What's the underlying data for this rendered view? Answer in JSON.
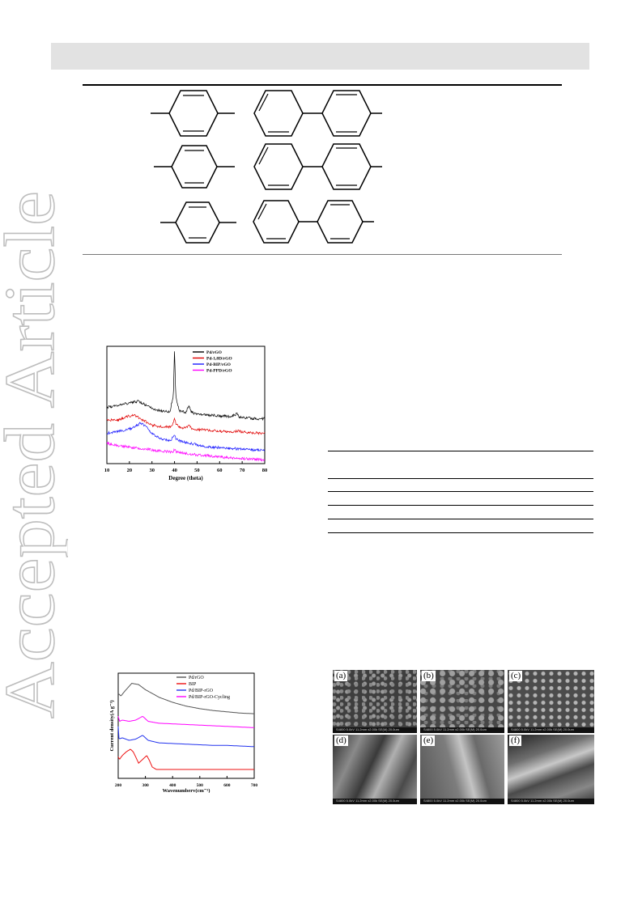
{
  "watermark": "Accepted Article",
  "xrd_chart": {
    "legend": [
      "Pd/rGO",
      "Pd-1,8D/rGO",
      "Pd-BIP/rGO",
      "Pd-PPD/rGO"
    ],
    "xlabel": "Degree (theta)",
    "xticks": [
      "10",
      "20",
      "30",
      "40",
      "50",
      "60",
      "70",
      "80"
    ]
  },
  "cv_chart": {
    "legend": [
      "Pd/rGO",
      "BIP",
      "Pd/BIP-rGO",
      "Pd/BIP-rGO-Cycling"
    ],
    "xlabel": "Wavenumberv(cm⁻¹)",
    "ylabel": "Current density(A g⁻¹)",
    "xticks": [
      "200",
      "300",
      "400",
      "500",
      "600",
      "700"
    ]
  },
  "sem": {
    "panels": [
      "(a)",
      "(b)",
      "(c)",
      "(d)",
      "(e)",
      "(f)"
    ],
    "footer": "S4800 5.0kV 11.2mm x2.00k SE(M) 20.0um"
  },
  "chart_data": [
    {
      "type": "line",
      "xlabel": "Degree (theta)",
      "ylabel": "",
      "xlim": [
        10,
        80
      ],
      "grid": false,
      "legend_position": "top-right",
      "series": [
        {
          "name": "Pd/rGO",
          "color": "#000000",
          "points": [
            [
              10,
              0.78
            ],
            [
              15,
              0.8
            ],
            [
              20,
              0.84
            ],
            [
              24,
              0.86
            ],
            [
              28,
              0.8
            ],
            [
              32,
              0.74
            ],
            [
              36,
              0.72
            ],
            [
              38,
              0.72
            ],
            [
              39.5,
              0.95
            ],
            [
              40,
              1.6
            ],
            [
              40.5,
              0.95
            ],
            [
              42,
              0.73
            ],
            [
              45,
              0.71
            ],
            [
              46.5,
              0.8
            ],
            [
              47.5,
              0.71
            ],
            [
              50,
              0.68
            ],
            [
              55,
              0.67
            ],
            [
              60,
              0.66
            ],
            [
              65,
              0.65
            ],
            [
              67.8,
              0.69
            ],
            [
              68.5,
              0.65
            ],
            [
              72,
              0.63
            ],
            [
              76,
              0.62
            ],
            [
              80,
              0.62
            ]
          ]
        },
        {
          "name": "Pd-1,8D/rGO",
          "color": "#e00000",
          "points": [
            [
              10,
              0.6
            ],
            [
              15,
              0.6
            ],
            [
              19,
              0.65
            ],
            [
              22,
              0.67
            ],
            [
              26,
              0.6
            ],
            [
              30,
              0.53
            ],
            [
              34,
              0.51
            ],
            [
              38,
              0.51
            ],
            [
              39.5,
              0.56
            ],
            [
              40,
              0.64
            ],
            [
              40.5,
              0.56
            ],
            [
              42,
              0.5
            ],
            [
              45,
              0.49
            ],
            [
              46.5,
              0.52
            ],
            [
              48,
              0.48
            ],
            [
              55,
              0.46
            ],
            [
              60,
              0.45
            ],
            [
              65,
              0.44
            ],
            [
              68,
              0.45
            ],
            [
              72,
              0.43
            ],
            [
              80,
              0.42
            ]
          ]
        },
        {
          "name": "Pd-BIP/rGO",
          "color": "#1a1aff",
          "points": [
            [
              10,
              0.42
            ],
            [
              14,
              0.44
            ],
            [
              18,
              0.46
            ],
            [
              22,
              0.5
            ],
            [
              25,
              0.56
            ],
            [
              27,
              0.52
            ],
            [
              30,
              0.42
            ],
            [
              34,
              0.34
            ],
            [
              38,
              0.32
            ],
            [
              40,
              0.38
            ],
            [
              41,
              0.33
            ],
            [
              44,
              0.3
            ],
            [
              50,
              0.26
            ],
            [
              55,
              0.23
            ],
            [
              60,
              0.22
            ],
            [
              65,
              0.21
            ],
            [
              70,
              0.2
            ],
            [
              75,
              0.19
            ],
            [
              80,
              0.19
            ]
          ]
        },
        {
          "name": "Pd-PPD/rGO",
          "color": "#ff00ff",
          "points": [
            [
              10,
              0.28
            ],
            [
              15,
              0.25
            ],
            [
              20,
              0.23
            ],
            [
              25,
              0.21
            ],
            [
              30,
              0.19
            ],
            [
              35,
              0.17
            ],
            [
              39,
              0.16
            ],
            [
              40,
              0.19
            ],
            [
              41,
              0.16
            ],
            [
              45,
              0.14
            ],
            [
              50,
              0.12
            ],
            [
              55,
              0.11
            ],
            [
              60,
              0.09
            ],
            [
              65,
              0.08
            ],
            [
              70,
              0.07
            ],
            [
              75,
              0.06
            ],
            [
              80,
              0.05
            ]
          ]
        }
      ]
    },
    {
      "type": "line",
      "xlabel": "Wavenumberv(cm⁻¹)",
      "ylabel": "Current density(A g⁻¹)",
      "xlim": [
        200,
        700
      ],
      "grid": false,
      "legend_position": "top-right",
      "series": [
        {
          "name": "Pd/rGO",
          "color": "#555555",
          "points": [
            [
              200,
              0.82
            ],
            [
              210,
              0.8
            ],
            [
              225,
              0.84
            ],
            [
              250,
              0.9
            ],
            [
              275,
              0.89
            ],
            [
              300,
              0.85
            ],
            [
              350,
              0.79
            ],
            [
              400,
              0.75
            ],
            [
              450,
              0.72
            ],
            [
              500,
              0.7
            ],
            [
              550,
              0.685
            ],
            [
              600,
              0.675
            ],
            [
              650,
              0.665
            ],
            [
              700,
              0.66
            ]
          ]
        },
        {
          "name": "Pd/BIP-rGO-Cycling",
          "color": "#ff00ff",
          "points": [
            [
              200,
              0.64
            ],
            [
              205,
              0.6
            ],
            [
              215,
              0.61
            ],
            [
              240,
              0.6
            ],
            [
              265,
              0.61
            ],
            [
              290,
              0.64
            ],
            [
              310,
              0.6
            ],
            [
              350,
              0.585
            ],
            [
              400,
              0.58
            ],
            [
              450,
              0.575
            ],
            [
              500,
              0.57
            ],
            [
              550,
              0.565
            ],
            [
              600,
              0.56
            ],
            [
              650,
              0.555
            ],
            [
              700,
              0.55
            ]
          ]
        },
        {
          "name": "Pd/BIP-rGO",
          "color": "#2233ee",
          "points": [
            [
              200,
              0.56
            ],
            [
              203,
              0.46
            ],
            [
              215,
              0.47
            ],
            [
              240,
              0.45
            ],
            [
              265,
              0.46
            ],
            [
              290,
              0.49
            ],
            [
              310,
              0.45
            ],
            [
              350,
              0.43
            ],
            [
              400,
              0.425
            ],
            [
              450,
              0.42
            ],
            [
              500,
              0.415
            ],
            [
              550,
              0.41
            ],
            [
              600,
              0.41
            ],
            [
              650,
              0.405
            ],
            [
              700,
              0.4
            ]
          ]
        },
        {
          "name": "BIP",
          "color": "#ee1111",
          "points": [
            [
              200,
              0.32
            ],
            [
              205,
              0.3
            ],
            [
              215,
              0.33
            ],
            [
              230,
              0.36
            ],
            [
              245,
              0.38
            ],
            [
              255,
              0.36
            ],
            [
              262,
              0.33
            ],
            [
              275,
              0.27
            ],
            [
              290,
              0.3
            ],
            [
              305,
              0.33
            ],
            [
              315,
              0.29
            ],
            [
              325,
              0.24
            ],
            [
              340,
              0.22
            ],
            [
              400,
              0.22
            ],
            [
              500,
              0.22
            ],
            [
              600,
              0.22
            ],
            [
              700,
              0.22
            ]
          ]
        }
      ]
    }
  ]
}
